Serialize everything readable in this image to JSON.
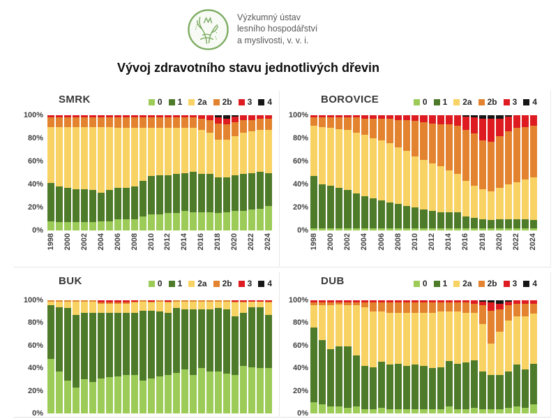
{
  "header": {
    "institute_lines": [
      "Výzkumný ústav",
      "lesního hospodářství",
      "a myslivosti, v. v. i."
    ],
    "title": "Vývoj zdravotního stavu jednotlivých dřevin"
  },
  "legend": {
    "items": [
      {
        "label": "0",
        "color": "#9ccb58"
      },
      {
        "label": "1",
        "color": "#4e7b2a"
      },
      {
        "label": "2a",
        "color": "#f9d264"
      },
      {
        "label": "2b",
        "color": "#e3832f"
      },
      {
        "label": "3",
        "color": "#dd1b21"
      },
      {
        "label": "4",
        "color": "#161616"
      }
    ]
  },
  "axis": {
    "y_ticks": [
      "100%",
      "80%",
      "60%",
      "40%",
      "20%",
      "0%"
    ]
  },
  "chart_data": [
    {
      "id": "smrk",
      "type": "bar",
      "stacked": true,
      "title": "SMRK",
      "ylim": [
        0,
        100
      ],
      "x_labels_visible": true,
      "x_tick_step": 2,
      "x": [
        1998,
        1999,
        2000,
        2001,
        2002,
        2003,
        2004,
        2005,
        2006,
        2007,
        2008,
        2009,
        2010,
        2011,
        2012,
        2013,
        2014,
        2015,
        2016,
        2017,
        2018,
        2019,
        2020,
        2021,
        2022,
        2023,
        2024
      ],
      "series": [
        {
          "name": "0",
          "values": [
            8,
            7,
            7,
            7,
            7,
            7,
            8,
            8,
            10,
            10,
            10,
            12,
            14,
            14,
            15,
            15,
            17,
            16,
            16,
            16,
            15,
            16,
            17,
            17,
            18,
            19,
            21
          ]
        },
        {
          "name": "1",
          "values": [
            33,
            31,
            30,
            29,
            29,
            28,
            25,
            27,
            27,
            27,
            28,
            31,
            33,
            34,
            33,
            34,
            33,
            35,
            33,
            33,
            31,
            30,
            31,
            32,
            32,
            32,
            29
          ]
        },
        {
          "name": "2a",
          "values": [
            49,
            52,
            53,
            54,
            54,
            55,
            57,
            55,
            52,
            52,
            51,
            46,
            42,
            41,
            41,
            40,
            39,
            38,
            38,
            36,
            33,
            33,
            34,
            36,
            36,
            36,
            37
          ]
        },
        {
          "name": "2b",
          "values": [
            8,
            8,
            8,
            8,
            8,
            8,
            8,
            8,
            9,
            9,
            9,
            9,
            9,
            9,
            9,
            9,
            9,
            9,
            10,
            11,
            14,
            13,
            12,
            11,
            10,
            10,
            10
          ]
        },
        {
          "name": "3",
          "values": [
            2,
            2,
            2,
            2,
            2,
            2,
            2,
            2,
            2,
            2,
            2,
            2,
            2,
            2,
            2,
            2,
            2,
            2,
            3,
            4,
            5,
            5,
            5,
            4,
            4,
            3,
            3
          ]
        },
        {
          "name": "4",
          "values": [
            0,
            0,
            0,
            0,
            0,
            0,
            0,
            0,
            0,
            0,
            0,
            0,
            0,
            0,
            0,
            0,
            0,
            0,
            0,
            0,
            2,
            3,
            1,
            0,
            0,
            0,
            0
          ]
        }
      ]
    },
    {
      "id": "borovice",
      "type": "bar",
      "stacked": true,
      "title": "BOROVICE",
      "ylim": [
        0,
        100
      ],
      "x_labels_visible": true,
      "x_tick_step": 2,
      "x": [
        1998,
        1999,
        2000,
        2001,
        2002,
        2003,
        2004,
        2005,
        2006,
        2007,
        2008,
        2009,
        2010,
        2011,
        2012,
        2013,
        2014,
        2015,
        2016,
        2017,
        2018,
        2019,
        2020,
        2021,
        2022,
        2023,
        2024
      ],
      "series": [
        {
          "name": "0",
          "values": [
            2,
            2,
            2,
            2,
            2,
            2,
            2,
            2,
            2,
            2,
            2,
            2,
            2,
            2,
            2,
            2,
            2,
            2,
            2,
            2,
            2,
            2,
            2,
            2,
            2,
            2,
            2
          ]
        },
        {
          "name": "1",
          "values": [
            45,
            38,
            37,
            35,
            33,
            30,
            28,
            26,
            24,
            22,
            21,
            19,
            18,
            16,
            15,
            14,
            14,
            14,
            10,
            9,
            8,
            7,
            8,
            8,
            8,
            8,
            7
          ]
        },
        {
          "name": "2a",
          "values": [
            44,
            50,
            50,
            51,
            52,
            53,
            53,
            52,
            52,
            52,
            49,
            48,
            44,
            43,
            41,
            40,
            36,
            33,
            31,
            28,
            26,
            25,
            27,
            30,
            32,
            34,
            37
          ]
        },
        {
          "name": "2b",
          "values": [
            7,
            8,
            9,
            10,
            11,
            13,
            14,
            17,
            19,
            21,
            24,
            27,
            31,
            33,
            35,
            36,
            40,
            42,
            44,
            45,
            42,
            43,
            45,
            46,
            47,
            46,
            45
          ]
        },
        {
          "name": "3",
          "values": [
            2,
            2,
            2,
            2,
            2,
            2,
            3,
            3,
            3,
            3,
            4,
            4,
            5,
            6,
            7,
            8,
            8,
            9,
            12,
            14,
            19,
            20,
            15,
            13,
            11,
            10,
            9
          ]
        },
        {
          "name": "4",
          "values": [
            0,
            0,
            0,
            0,
            0,
            0,
            0,
            0,
            0,
            0,
            0,
            0,
            0,
            0,
            0,
            0,
            0,
            0,
            1,
            2,
            3,
            3,
            3,
            1,
            0,
            0,
            0
          ]
        }
      ]
    },
    {
      "id": "buk",
      "type": "bar",
      "stacked": true,
      "title": "BUK",
      "ylim": [
        0,
        100
      ],
      "x_labels_visible": false,
      "x_tick_step": 2,
      "x": [
        1998,
        1999,
        2000,
        2001,
        2002,
        2003,
        2004,
        2005,
        2006,
        2007,
        2008,
        2009,
        2010,
        2011,
        2012,
        2013,
        2014,
        2015,
        2016,
        2017,
        2018,
        2019,
        2020,
        2021,
        2022,
        2023,
        2024
      ],
      "series": [
        {
          "name": "0",
          "values": [
            48,
            37,
            29,
            23,
            30,
            28,
            31,
            32,
            33,
            34,
            34,
            29,
            31,
            33,
            34,
            36,
            39,
            34,
            40,
            37,
            37,
            35,
            34,
            42,
            41,
            40,
            40
          ]
        },
        {
          "name": "1",
          "values": [
            48,
            57,
            64,
            64,
            59,
            61,
            58,
            57,
            56,
            55,
            55,
            62,
            60,
            57,
            55,
            57,
            53,
            58,
            52,
            55,
            56,
            57,
            52,
            47,
            53,
            54,
            47
          ]
        },
        {
          "name": "2a",
          "values": [
            3,
            5,
            6,
            12,
            10,
            10,
            8,
            8,
            8,
            8,
            9,
            8,
            7,
            9,
            9,
            6,
            7,
            7,
            7,
            7,
            6,
            7,
            12,
            9,
            5,
            5,
            11
          ]
        },
        {
          "name": "2b",
          "values": [
            1,
            1,
            1,
            1,
            1,
            1,
            1,
            1,
            1,
            1,
            1,
            1,
            1,
            1,
            1,
            1,
            1,
            1,
            1,
            1,
            1,
            1,
            1,
            1,
            0,
            0,
            1
          ]
        },
        {
          "name": "3",
          "values": [
            0,
            0,
            0,
            0,
            0,
            0,
            2,
            2,
            2,
            2,
            1,
            0,
            1,
            0,
            1,
            0,
            0,
            0,
            0,
            0,
            0,
            0,
            1,
            1,
            1,
            1,
            1
          ]
        },
        {
          "name": "4",
          "values": [
            0,
            0,
            0,
            0,
            0,
            0,
            0,
            0,
            0,
            0,
            0,
            0,
            0,
            0,
            0,
            0,
            0,
            0,
            0,
            0,
            0,
            0,
            0,
            0,
            0,
            0,
            0
          ]
        }
      ]
    },
    {
      "id": "dub",
      "type": "bar",
      "stacked": true,
      "title": "DUB",
      "ylim": [
        0,
        100
      ],
      "x_labels_visible": false,
      "x_tick_step": 2,
      "x": [
        1998,
        1999,
        2000,
        2001,
        2002,
        2003,
        2004,
        2005,
        2006,
        2007,
        2008,
        2009,
        2010,
        2011,
        2012,
        2013,
        2014,
        2015,
        2016,
        2017,
        2018,
        2019,
        2020,
        2021,
        2022,
        2023,
        2024
      ],
      "series": [
        {
          "name": "0",
          "values": [
            10,
            8,
            6,
            6,
            5,
            6,
            4,
            4,
            5,
            4,
            4,
            4,
            4,
            4,
            4,
            4,
            6,
            4,
            4,
            5,
            4,
            4,
            4,
            5,
            6,
            5,
            8
          ]
        },
        {
          "name": "1",
          "values": [
            66,
            57,
            51,
            53,
            54,
            45,
            38,
            37,
            41,
            39,
            40,
            38,
            39,
            38,
            36,
            37,
            40,
            40,
            41,
            42,
            33,
            30,
            30,
            32,
            37,
            34,
            36
          ]
        },
        {
          "name": "2a",
          "values": [
            20,
            31,
            39,
            37,
            37,
            45,
            52,
            49,
            44,
            46,
            45,
            47,
            46,
            47,
            49,
            49,
            44,
            46,
            44,
            42,
            42,
            28,
            38,
            45,
            43,
            47,
            44
          ]
        },
        {
          "name": "2b",
          "values": [
            2,
            2,
            2,
            2,
            2,
            2,
            4,
            8,
            8,
            9,
            9,
            9,
            9,
            9,
            9,
            8,
            8,
            8,
            9,
            8,
            17,
            29,
            20,
            14,
            11,
            11,
            9
          ]
        },
        {
          "name": "3",
          "values": [
            2,
            2,
            2,
            2,
            2,
            2,
            2,
            2,
            2,
            2,
            2,
            2,
            2,
            2,
            2,
            2,
            2,
            2,
            2,
            3,
            3,
            7,
            5,
            3,
            3,
            3,
            3
          ]
        },
        {
          "name": "4",
          "values": [
            0,
            0,
            0,
            0,
            0,
            0,
            0,
            0,
            0,
            0,
            0,
            0,
            0,
            0,
            0,
            0,
            0,
            0,
            0,
            0,
            1,
            2,
            3,
            1,
            0,
            0,
            0
          ]
        }
      ]
    }
  ]
}
